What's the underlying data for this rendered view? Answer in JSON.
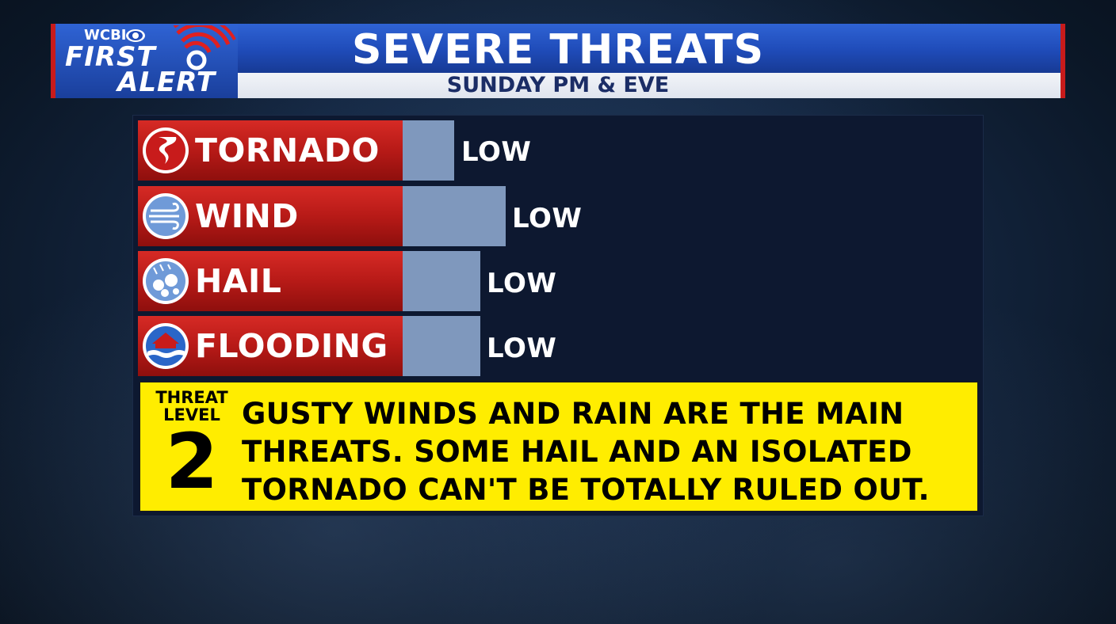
{
  "header": {
    "station": "WCBI",
    "brand_line1": "FIRST",
    "brand_line2": "ALERT",
    "title": "SEVERE THREATS",
    "subtitle": "SUNDAY PM & EVE"
  },
  "threats": [
    {
      "label": "TORNADO",
      "icon": "tornado-icon",
      "level": "LOW",
      "relative_bar": 0.6
    },
    {
      "label": "WIND",
      "icon": "wind-icon",
      "level": "LOW",
      "relative_bar": 1.0
    },
    {
      "label": "HAIL",
      "icon": "hail-icon",
      "level": "LOW",
      "relative_bar": 0.75
    },
    {
      "label": "FLOODING",
      "icon": "flood-icon",
      "level": "LOW",
      "relative_bar": 0.75
    }
  ],
  "threat_level": {
    "line1": "THREAT",
    "line2": "LEVEL",
    "number": "2",
    "message": "GUSTY WINDS AND RAIN ARE THE MAIN THREATS. SOME HAIL AND AN ISOLATED TORNADO CAN'T BE TOTALLY RULED OUT."
  },
  "colors": {
    "title_bar": "#1f4bb8",
    "label_red": "#c81b1b",
    "bar_fill": "#7f98bd",
    "threat_box": "#ffed00"
  }
}
